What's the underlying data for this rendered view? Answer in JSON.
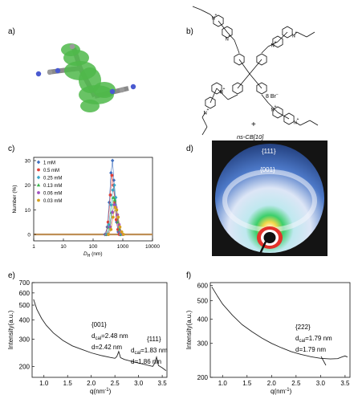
{
  "panels": {
    "a": {
      "label": "a)"
    },
    "b": {
      "label": "b)",
      "pyridinium_charge": "+",
      "nitrogen": "N",
      "counterion": "8 Br",
      "counterion_charge": "−",
      "plus": "+",
      "host": "ns-CB[10]"
    },
    "c": {
      "label": "c)"
    },
    "d": {
      "label": "d)",
      "reflections": [
        "{111}",
        "{001}"
      ],
      "colors": {
        "outer": "#1c1c1c",
        "inner_blue": "#2d5fb0",
        "ring": "#e9f0fb",
        "green": "#3bd06a",
        "yellow": "#f0e54a",
        "red": "#e8402a"
      }
    },
    "e": {
      "label": "e)",
      "annotations": [
        {
          "hkl": "{001}",
          "dcal_prefix": "d",
          "dcal_sub": "cal",
          "dcal_value": "=2.48 nm",
          "d": "d=2.42 nm"
        },
        {
          "hkl": "{111}",
          "dcal_prefix": "d",
          "dcal_sub": "cal",
          "dcal_value": "=1.83 nm",
          "d": "d=1.86 nm"
        }
      ]
    },
    "f": {
      "label": "f)",
      "annotations": [
        {
          "hkl": "{222}",
          "dcal_prefix": "d",
          "dcal_sub": "cal",
          "dcal_value": "=1.79 nm",
          "d": "d=1.79 nm"
        }
      ]
    }
  },
  "chart_data": [
    {
      "id": "c",
      "type": "line",
      "xscale": "log",
      "xlim": [
        1,
        10000
      ],
      "ylim": [
        0,
        30
      ],
      "x_ticks": [
        "1",
        "10",
        "100",
        "1000",
        "10000"
      ],
      "y_ticks": [
        "0",
        "10",
        "20",
        "30"
      ],
      "xlabel_prefix": "D",
      "xlabel_sub": "H",
      "xlabel_suffix": " (nm)",
      "ylabel": "Number (%)",
      "legend_position": "top-left",
      "series": [
        {
          "name": "1 mM",
          "color": "#3f6fbf",
          "marker": "diamond",
          "x": [
            250,
            300,
            350,
            400,
            450,
            500,
            560,
            620,
            700,
            800
          ],
          "y": [
            0,
            3,
            13,
            25,
            30,
            22,
            12,
            5,
            1,
            0
          ]
        },
        {
          "name": "0.5 mM",
          "color": "#e0403a",
          "marker": "circle",
          "x": [
            270,
            320,
            380,
            430,
            480,
            540,
            600,
            680,
            760
          ],
          "y": [
            0,
            5,
            16,
            24,
            20,
            13,
            6,
            2,
            0
          ]
        },
        {
          "name": "0.25 mM",
          "color": "#3aa7c8",
          "marker": "diamond",
          "x": [
            280,
            340,
            400,
            460,
            520,
            580,
            650,
            740,
            850
          ],
          "y": [
            0,
            4,
            12,
            18,
            20,
            15,
            8,
            3,
            0
          ]
        },
        {
          "name": "0.13 mM",
          "color": "#38b44a",
          "marker": "triangle",
          "x": [
            300,
            360,
            420,
            480,
            540,
            610,
            690,
            790,
            900
          ],
          "y": [
            0,
            3,
            9,
            15,
            14,
            10,
            5,
            2,
            0
          ]
        },
        {
          "name": "0.06 mM",
          "color": "#a050c0",
          "marker": "circle",
          "x": [
            320,
            380,
            450,
            520,
            590,
            660,
            750,
            860,
            980
          ],
          "y": [
            0,
            3,
            9,
            12,
            11,
            8,
            4,
            1,
            0
          ]
        },
        {
          "name": "0.03 mM",
          "color": "#d4a020",
          "marker": "circle",
          "x": [
            330,
            400,
            470,
            550,
            620,
            700,
            800,
            920,
            1050
          ],
          "y": [
            0,
            2,
            7,
            11,
            10,
            7,
            3,
            1,
            0
          ]
        }
      ]
    },
    {
      "id": "e",
      "type": "line",
      "yscale": "log",
      "xlim": [
        0.75,
        3.6
      ],
      "ylim": [
        170,
        700
      ],
      "x_ticks": [
        1.0,
        1.5,
        2.0,
        2.5,
        3.0,
        3.5
      ],
      "x_tick_labels": [
        "1.0",
        "1.5",
        "2.0",
        "2.5",
        "3.0",
        "3.5"
      ],
      "y_ticks": [
        200,
        300,
        400,
        500,
        600,
        700
      ],
      "y_tick_labels": [
        "200",
        "300",
        "400",
        "500",
        "600",
        "700"
      ],
      "xlabel_prefix": "q(nm",
      "xlabel_sup": "-1",
      "xlabel_suffix": ")",
      "ylabel": "Intensity(a.u.)",
      "series": [
        {
          "x": [
            0.78,
            0.85,
            0.95,
            1.05,
            1.2,
            1.4,
            1.6,
            1.8,
            2.0,
            2.2,
            2.4,
            2.5,
            2.54,
            2.58,
            2.62,
            2.7,
            2.9,
            3.1,
            3.3,
            3.34,
            3.38,
            3.42,
            3.5,
            3.58
          ],
          "y": [
            545,
            470,
            410,
            370,
            330,
            295,
            272,
            258,
            245,
            236,
            229,
            226,
            232,
            250,
            228,
            222,
            214,
            207,
            200,
            210,
            230,
            203,
            196,
            188
          ]
        }
      ]
    },
    {
      "id": "f",
      "type": "line",
      "yscale": "log",
      "xlim": [
        0.75,
        3.6
      ],
      "ylim": [
        200,
        620
      ],
      "x_ticks": [
        1.0,
        1.5,
        2.0,
        2.5,
        3.0,
        3.5
      ],
      "x_tick_labels": [
        "1.0",
        "1.5",
        "2.0",
        "2.5",
        "3.0",
        "3.5"
      ],
      "y_ticks": [
        200,
        300,
        400,
        500,
        600
      ],
      "y_tick_labels": [
        "200",
        "300",
        "400",
        "500",
        "600"
      ],
      "xlabel_prefix": "q(nm",
      "xlabel_sup": "-1",
      "xlabel_suffix": ")",
      "ylabel": "Intensity(a.u.)",
      "series": [
        {
          "x": [
            0.78,
            0.9,
            1.0,
            1.2,
            1.4,
            1.6,
            1.8,
            2.0,
            2.2,
            2.4,
            2.6,
            2.8,
            3.0,
            3.2,
            3.35,
            3.45,
            3.5,
            3.55
          ],
          "y": [
            590,
            525,
            480,
            420,
            375,
            345,
            320,
            300,
            285,
            272,
            263,
            256,
            251,
            249,
            250,
            256,
            258,
            255
          ]
        }
      ]
    }
  ]
}
